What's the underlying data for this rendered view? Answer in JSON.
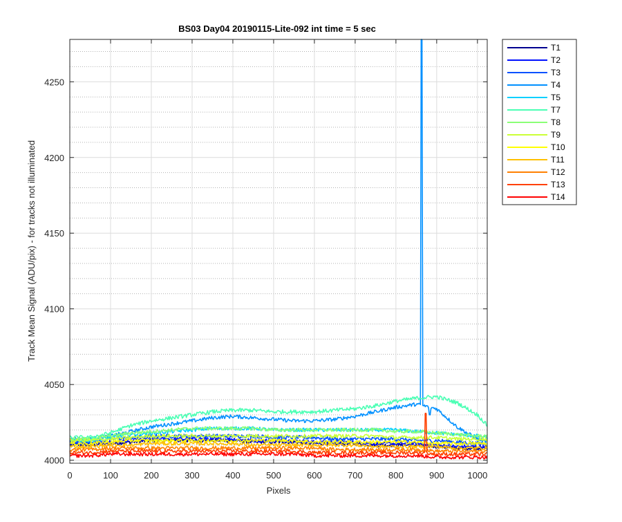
{
  "chart_data": {
    "type": "line",
    "title": "BS03 Day04 20190115-Lite-092 int time = 5 sec",
    "xlabel": "Pixels",
    "ylabel": "Track Mean Signal (ADU/pix) - for tracks not illuminated",
    "xlim": [
      0,
      1024
    ],
    "ylim": [
      3998,
      4278
    ],
    "xticks": [
      0,
      100,
      200,
      300,
      400,
      500,
      600,
      700,
      800,
      900,
      1000
    ],
    "yticks": [
      4000,
      4050,
      4100,
      4150,
      4200,
      4250
    ],
    "grid": "major solid, minor dotted",
    "legend_position": "outside-right",
    "x_knots": [
      0,
      50,
      100,
      150,
      200,
      250,
      300,
      350,
      400,
      450,
      500,
      550,
      600,
      650,
      700,
      750,
      800,
      850,
      900,
      950,
      1000,
      1024
    ],
    "series": [
      {
        "name": "T1",
        "color": "#00008f",
        "noise": 1.2,
        "values": [
          4010,
          4010,
          4011,
          4012,
          4013,
          4013,
          4013,
          4013,
          4013,
          4012,
          4012,
          4012,
          4011,
          4011,
          4011,
          4010,
          4010,
          4010,
          4009,
          4008,
          4008,
          4008
        ]
      },
      {
        "name": "T2",
        "color": "#0010ff",
        "noise": 1.2,
        "values": [
          4011,
          4011,
          4012,
          4013,
          4014,
          4014,
          4014,
          4014,
          4014,
          4013,
          4013,
          4013,
          4012,
          4012,
          4012,
          4011,
          4011,
          4011,
          4010,
          4009,
          4009,
          4009
        ]
      },
      {
        "name": "T3",
        "color": "#0050ff",
        "noise": 1.3,
        "values": [
          4012,
          4012,
          4014,
          4015,
          4016,
          4016,
          4016,
          4016,
          4016,
          4016,
          4015,
          4015,
          4015,
          4014,
          4014,
          4014,
          4014,
          4013,
          4013,
          4012,
          4011,
          4011
        ]
      },
      {
        "name": "T4",
        "color": "#0090ff",
        "noise": 1.2,
        "values": [
          4014,
          4014,
          4016,
          4019,
          4022,
          4024,
          4026,
          4028,
          4029,
          4028,
          4027,
          4026,
          4026,
          4027,
          4029,
          4032,
          4035,
          4037,
          4034,
          4022,
          4014,
          4012
        ],
        "spikes": [
          {
            "x": 863,
            "y": 4278
          },
          {
            "x": 875,
            "y": 4036
          },
          {
            "x": 883,
            "y": 4030
          }
        ]
      },
      {
        "name": "T5",
        "color": "#00d0ff",
        "noise": 1.2,
        "values": [
          4013,
          4013,
          4015,
          4017,
          4018,
          4019,
          4020,
          4021,
          4021,
          4021,
          4020,
          4020,
          4020,
          4020,
          4020,
          4020,
          4020,
          4019,
          4018,
          4017,
          4016,
          4015
        ]
      },
      {
        "name": "T7",
        "color": "#4affb4",
        "noise": 1.3,
        "values": [
          4015,
          4015,
          4018,
          4023,
          4026,
          4028,
          4030,
          4032,
          4033,
          4033,
          4032,
          4032,
          4032,
          4033,
          4034,
          4036,
          4039,
          4041,
          4042,
          4038,
          4030,
          4023
        ]
      },
      {
        "name": "T8",
        "color": "#8aff75",
        "noise": 1.2,
        "values": [
          4014,
          4014,
          4016,
          4018,
          4019,
          4020,
          4021,
          4021,
          4021,
          4021,
          4020,
          4020,
          4020,
          4020,
          4020,
          4020,
          4019,
          4019,
          4018,
          4017,
          4016,
          4016
        ]
      },
      {
        "name": "T9",
        "color": "#caff35",
        "noise": 1.2,
        "values": [
          4013,
          4013,
          4014,
          4015,
          4016,
          4016,
          4016,
          4016,
          4016,
          4016,
          4016,
          4016,
          4016,
          4016,
          4016,
          4016,
          4015,
          4015,
          4015,
          4014,
          4014,
          4014
        ]
      },
      {
        "name": "T10",
        "color": "#ffff00",
        "noise": 1.2,
        "values": [
          4011,
          4011,
          4012,
          4013,
          4013,
          4013,
          4013,
          4013,
          4013,
          4013,
          4013,
          4013,
          4012,
          4012,
          4012,
          4012,
          4012,
          4012,
          4011,
          4011,
          4011,
          4011
        ]
      },
      {
        "name": "T11",
        "color": "#ffc000",
        "noise": 1.2,
        "values": [
          4009,
          4009,
          4010,
          4010,
          4011,
          4011,
          4011,
          4011,
          4011,
          4010,
          4010,
          4010,
          4010,
          4010,
          4010,
          4009,
          4009,
          4009,
          4009,
          4008,
          4008,
          4008
        ]
      },
      {
        "name": "T12",
        "color": "#ff8000",
        "noise": 1.2,
        "values": [
          4007,
          4007,
          4008,
          4008,
          4008,
          4008,
          4008,
          4008,
          4008,
          4008,
          4008,
          4008,
          4008,
          4007,
          4007,
          4007,
          4007,
          4007,
          4006,
          4006,
          4006,
          4006
        ]
      },
      {
        "name": "T13",
        "color": "#ff4000",
        "noise": 1.2,
        "values": [
          4005,
          4005,
          4006,
          4006,
          4006,
          4006,
          4006,
          4006,
          4006,
          4006,
          4006,
          4006,
          4005,
          4005,
          4005,
          4005,
          4005,
          4005,
          4004,
          4004,
          4004,
          4004
        ],
        "spikes": [
          {
            "x": 873,
            "y": 4031
          }
        ]
      },
      {
        "name": "T14",
        "color": "#ff0000",
        "noise": 1.2,
        "values": [
          4003,
          4003,
          4004,
          4004,
          4004,
          4004,
          4004,
          4004,
          4004,
          4004,
          4004,
          4004,
          4003,
          4003,
          4003,
          4003,
          4003,
          4003,
          4002,
          4002,
          4002,
          4002
        ]
      }
    ]
  }
}
